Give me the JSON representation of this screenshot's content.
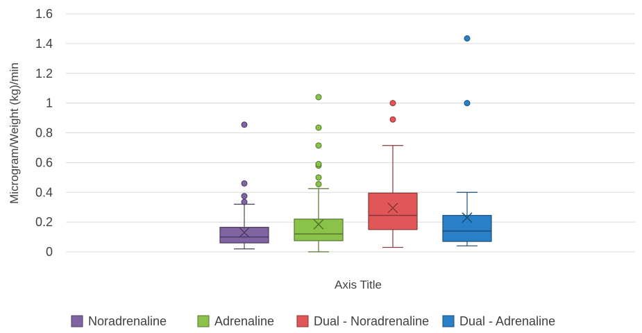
{
  "chart_data": {
    "type": "boxplot",
    "xlabel": "Axis Title",
    "ylabel": "Microgram/Weight (kg)/min",
    "ylim": [
      0,
      1.6
    ],
    "yticks": [
      0,
      0.2,
      0.4,
      0.6,
      0.8,
      1,
      1.2,
      1.4,
      1.6
    ],
    "ytick_labels": [
      "0",
      "0.2",
      "0.4",
      "0.6",
      "0.8",
      "1",
      "1.2",
      "1.4",
      "1.6"
    ],
    "grid": "horizontal",
    "legend_position": "bottom",
    "series": [
      {
        "name": "Noradrenaline",
        "color": "#8064a2",
        "min": 0.02,
        "q1": 0.06,
        "median": 0.1,
        "q3": 0.165,
        "max": 0.32,
        "mean": 0.13,
        "outliers": [
          0.335,
          0.375,
          0.46,
          0.855
        ]
      },
      {
        "name": "Adrenaline",
        "color": "#8bc34a",
        "min": 0.0,
        "q1": 0.075,
        "median": 0.12,
        "q3": 0.22,
        "max": 0.425,
        "mean": 0.185,
        "outliers": [
          0.455,
          0.5,
          0.58,
          0.59,
          0.715,
          0.835,
          1.04
        ]
      },
      {
        "name": "Dual - Noradrenaline",
        "color": "#e15759",
        "min": 0.03,
        "q1": 0.15,
        "median": 0.245,
        "q3": 0.395,
        "max": 0.715,
        "mean": 0.295,
        "outliers": [
          0.89,
          1.0
        ]
      },
      {
        "name": "Dual - Adrenaline",
        "color": "#2a80c7",
        "min": 0.04,
        "q1": 0.07,
        "median": 0.14,
        "q3": 0.245,
        "max": 0.4,
        "mean": 0.23,
        "outliers": [
          1.0,
          1.435
        ]
      }
    ]
  }
}
